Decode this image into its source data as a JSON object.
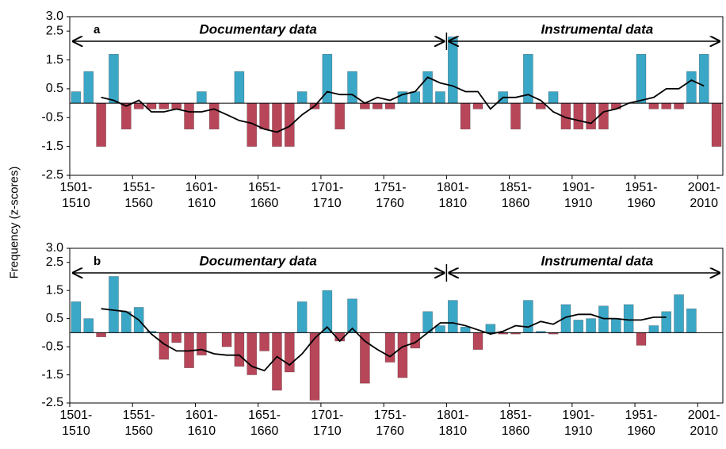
{
  "y_label": "Frequency (z-scores)",
  "chart_data": [
    {
      "type": "bar",
      "label": "a",
      "annotations": [
        "Documentary data",
        "Instrumental data"
      ],
      "categories": [
        "1501-1510",
        null,
        null,
        null,
        null,
        "1551-1560",
        null,
        null,
        null,
        null,
        "1601-1610",
        null,
        null,
        null,
        null,
        "1651-1660",
        null,
        null,
        null,
        null,
        "1701-1710",
        null,
        null,
        null,
        null,
        "1751-1760",
        null,
        null,
        null,
        null,
        "1801-1810",
        null,
        null,
        null,
        null,
        "1851-1860",
        null,
        null,
        null,
        null,
        "1901-1910",
        null,
        null,
        null,
        null,
        "1951-1960",
        null,
        null,
        null,
        null,
        "2001-2010",
        null
      ],
      "values": [
        0.4,
        1.1,
        -1.5,
        1.7,
        -0.9,
        -0.2,
        -0.2,
        -0.2,
        -0.2,
        -0.9,
        0.4,
        -0.9,
        0,
        1.1,
        -1.5,
        -0.9,
        -1.5,
        -1.5,
        0.4,
        -0.2,
        1.7,
        -0.9,
        1.1,
        -0.2,
        -0.2,
        -0.2,
        0.4,
        0.4,
        1.1,
        0.4,
        2.3,
        -0.9,
        -0.2,
        0,
        0.4,
        -0.9,
        1.7,
        -0.2,
        0.4,
        -0.9,
        -0.9,
        -0.9,
        -0.9,
        -0.2,
        0,
        1.7,
        -0.2,
        -0.2,
        -0.2,
        1.1,
        1.7,
        -1.5
      ],
      "line": [
        null,
        null,
        0.2,
        0.1,
        -0.1,
        0.1,
        -0.3,
        -0.3,
        -0.2,
        -0.3,
        -0.3,
        -0.2,
        -0.4,
        -0.6,
        -0.7,
        -0.9,
        -1.0,
        -0.8,
        -0.4,
        -0.1,
        0.4,
        0.3,
        0.3,
        0.0,
        0.2,
        0.1,
        0.3,
        0.4,
        0.9,
        0.7,
        0.6,
        0.4,
        0.4,
        -0.2,
        0.2,
        0.2,
        0.3,
        0.1,
        -0.3,
        -0.5,
        -0.6,
        -0.7,
        -0.3,
        -0.2,
        0.0,
        0.1,
        0.2,
        0.5,
        0.5,
        0.8,
        0.6,
        null
      ],
      "colors": {
        "positive": "#3aa7c7",
        "negative": "#b84659",
        "line": "#000000"
      },
      "ylim": [
        -2.5,
        3.0
      ],
      "yticks": [
        {
          "value": 3,
          "label": "3.0"
        },
        2.5,
        1.5,
        0.5,
        -0.5,
        -1.5,
        -2.5
      ]
    },
    {
      "type": "bar",
      "label": "b",
      "annotations": [
        "Documentary data",
        "Instrumental data"
      ],
      "categories": [
        "1501-1510",
        null,
        null,
        null,
        null,
        "1551-1560",
        null,
        null,
        null,
        null,
        "1601-1610",
        null,
        null,
        null,
        null,
        "1651-1660",
        null,
        null,
        null,
        null,
        "1701-1710",
        null,
        null,
        null,
        null,
        "1751-1760",
        null,
        null,
        null,
        null,
        "1801-1810",
        null,
        null,
        null,
        null,
        "1851-1860",
        null,
        null,
        null,
        null,
        "1901-1910",
        null,
        null,
        null,
        null,
        "1951-1960",
        null,
        null,
        null,
        null,
        "2001-2010",
        null
      ],
      "values": [
        1.1,
        0.5,
        -0.15,
        2.0,
        0.75,
        0.9,
        0.05,
        -0.95,
        -0.35,
        -1.25,
        -0.8,
        0,
        -0.5,
        -1.2,
        -1.5,
        -0.65,
        -2.05,
        -1.4,
        1.1,
        -2.4,
        1.5,
        -0.3,
        1.2,
        -1.8,
        0,
        -1.05,
        -1.6,
        -0.55,
        0.75,
        0.25,
        1.15,
        0.2,
        -0.6,
        0.3,
        -0.05,
        -0.05,
        1.15,
        0.05,
        -0.05,
        1.0,
        0.45,
        0.5,
        0.95,
        0.5,
        1.0,
        -0.45,
        0.25,
        0.75,
        1.35,
        0.85,
        0,
        0
      ],
      "line": [
        null,
        null,
        0.85,
        0.8,
        0.75,
        0.45,
        -0.05,
        -0.4,
        -0.65,
        -0.65,
        -0.6,
        -0.75,
        -0.8,
        -0.8,
        -1.2,
        -1.35,
        -0.85,
        -1.15,
        -0.75,
        -0.2,
        0.2,
        -0.3,
        0.15,
        -0.3,
        -0.6,
        -0.85,
        -0.5,
        -0.35,
        0.0,
        0.35,
        0.35,
        0.25,
        0.1,
        -0.05,
        0.05,
        0.25,
        0.2,
        0.4,
        0.3,
        0.55,
        0.65,
        0.65,
        0.5,
        0.5,
        0.45,
        0.45,
        0.55,
        0.55,
        null,
        null,
        null,
        null
      ],
      "colors": {
        "positive": "#3aa7c7",
        "negative": "#b84659",
        "line": "#000000"
      },
      "ylim": [
        -2.5,
        3.0
      ],
      "yticks": [
        {
          "value": 3,
          "label": "3.0"
        },
        2.5,
        1.5,
        0.5,
        -0.5,
        -1.5,
        -2.5
      ]
    }
  ]
}
